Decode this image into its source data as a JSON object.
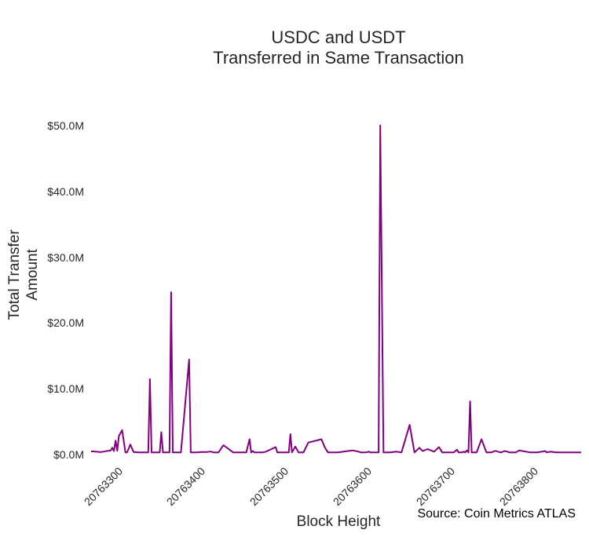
{
  "chart_data": {
    "type": "line",
    "title_lines": [
      "USDC and USDT",
      "Transferred in Same Transaction"
    ],
    "xlabel": "Block Height",
    "ylabel_lines": [
      "Total Transfer",
      "Amount"
    ],
    "source": "Source: Coin Metrics ATLAS",
    "xlim": [
      20763250,
      20763850
    ],
    "ylim": [
      0,
      52000000
    ],
    "x_ticks": [
      20763300,
      20763400,
      20763500,
      20763600,
      20763700,
      20763800
    ],
    "x_tick_labels": [
      "20763300",
      "20763400",
      "20763500",
      "20763600",
      "20763700",
      "20763800"
    ],
    "y_ticks": [
      0,
      10000000,
      20000000,
      30000000,
      40000000,
      50000000
    ],
    "y_tick_labels": [
      "$0.0M",
      "$10.0M",
      "$20.0M",
      "$30.0M",
      "$40.0M",
      "$50.0M"
    ],
    "grid": false,
    "series": [
      {
        "color": "#800080",
        "x": [
          20763250,
          20763262,
          20763274,
          20763276,
          20763278,
          20763280,
          20763282,
          20763284,
          20763288,
          20763292,
          20763294,
          20763298,
          20763302,
          20763308,
          20763310,
          20763312,
          20763320,
          20763322,
          20763324,
          20763328,
          20763334,
          20763336,
          20763338,
          20763340,
          20763343,
          20763346,
          20763348,
          20763350,
          20763352,
          20763354,
          20763360,
          20763370,
          20763372,
          20763374,
          20763378,
          20763380,
          20763384,
          20763392,
          20763395,
          20763397,
          20763400,
          20763406,
          20763412,
          20763424,
          20763440,
          20763444,
          20763446,
          20763448,
          20763450,
          20763452,
          20763456,
          20763460,
          20763464,
          20763476,
          20763478,
          20763480,
          20763484,
          20763490,
          20763492,
          20763494,
          20763496,
          20763500,
          20763504,
          20763510,
          20763516,
          20763532,
          20763536,
          20763540,
          20763548,
          20763552,
          20763570,
          20763578,
          20763580,
          20763582,
          20763584,
          20763586,
          20763590,
          20763592,
          20763596,
          20763598,
          20763600,
          20763602,
          20763604,
          20763608,
          20763612,
          20763616,
          20763624,
          20763630,
          20763640,
          20763646,
          20763652,
          20763656,
          20763662,
          20763670,
          20763676,
          20763680,
          20763684,
          20763688,
          20763694,
          20763698,
          20763700,
          20763704,
          20763706,
          20763708,
          20763710,
          20763712,
          20763714,
          20763716,
          20763718,
          20763722,
          20763728,
          20763734,
          20763740,
          20763744,
          20763746,
          20763748,
          20763752,
          20763756,
          20763760,
          20763762,
          20763764,
          20763766,
          20763770,
          20763774,
          20763778,
          20763788,
          20763790,
          20763792,
          20763794,
          20763796,
          20763802,
          20763806,
          20763808,
          20763812,
          20763820,
          20763832,
          20763850
        ],
        "values": [
          250000,
          150000,
          400000,
          800000,
          300000,
          1900000,
          350000,
          2600000,
          3500000,
          100000,
          80000,
          1300000,
          150000,
          80000,
          80000,
          80000,
          80000,
          11300000,
          80000,
          80000,
          80000,
          3200000,
          80000,
          80000,
          80000,
          80000,
          24600000,
          80000,
          80000,
          80000,
          80000,
          14300000,
          80000,
          80000,
          80000,
          80000,
          150000,
          150000,
          200000,
          200000,
          80000,
          80000,
          1200000,
          80000,
          80000,
          2100000,
          80000,
          300000,
          80000,
          80000,
          80000,
          80000,
          200000,
          900000,
          80000,
          80000,
          80000,
          80000,
          80000,
          2900000,
          80000,
          1000000,
          80000,
          80000,
          1600000,
          2100000,
          900000,
          80000,
          80000,
          80000,
          400000,
          200000,
          80000,
          80000,
          80000,
          80000,
          200000,
          80000,
          80000,
          80000,
          80000,
          80000,
          50100000,
          80000,
          80000,
          80000,
          200000,
          80000,
          4300000,
          80000,
          800000,
          300000,
          600000,
          200000,
          900000,
          80000,
          80000,
          80000,
          80000,
          500000,
          80000,
          80000,
          200000,
          80000,
          400000,
          80000,
          7900000,
          80000,
          80000,
          80000,
          2100000,
          80000,
          80000,
          300000,
          300000,
          200000,
          80000,
          300000,
          200000,
          80000,
          80000,
          80000,
          80000,
          400000,
          300000,
          80000,
          80000,
          80000,
          80000,
          80000,
          200000,
          300000,
          80000,
          200000,
          80000,
          80000,
          80000
        ]
      }
    ]
  }
}
